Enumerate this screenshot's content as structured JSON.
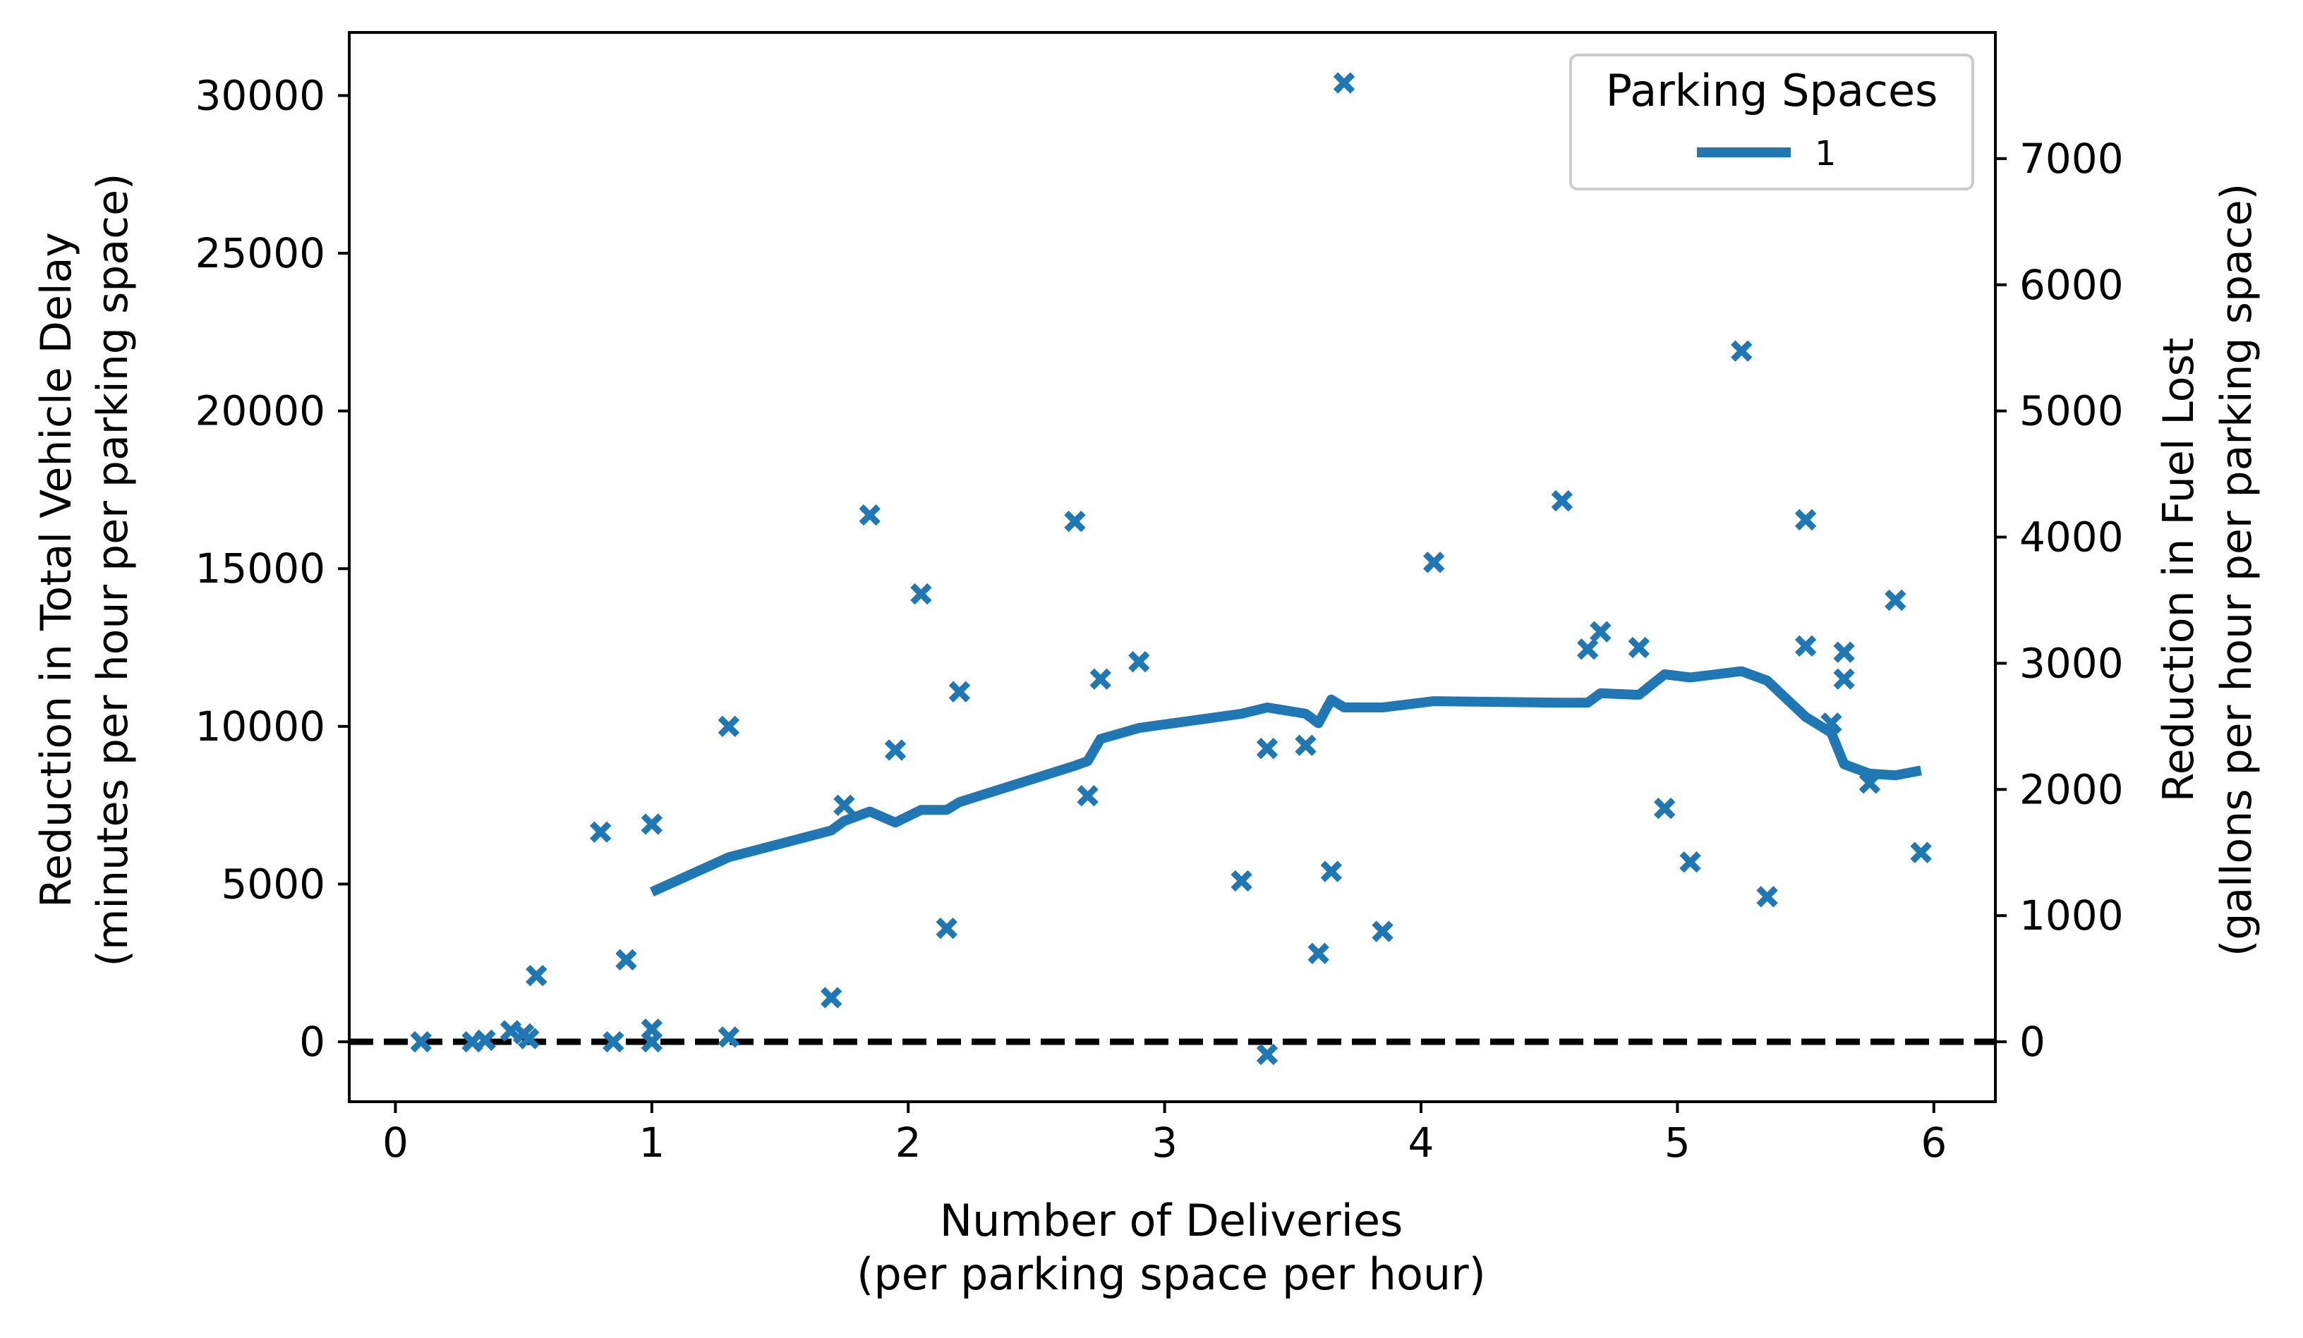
{
  "chart_data": {
    "type": "scatter",
    "xlabel": [
      "Number of Deliveries",
      "(per parking space per hour)"
    ],
    "ylabel_left": [
      "Reduction in Total Vehicle Delay",
      "(minutes per hour per parking space)"
    ],
    "ylabel_right": [
      "Reduction in Fuel Lost",
      "(gallons per hour per parking space)"
    ],
    "xlim": [
      -0.18,
      6.24
    ],
    "ylim_left": [
      -1900,
      32000
    ],
    "ylim_right": [
      -475,
      8000
    ],
    "xticks": [
      0,
      1,
      2,
      3,
      4,
      5,
      6
    ],
    "yticks_left": [
      0,
      5000,
      10000,
      15000,
      20000,
      25000,
      30000
    ],
    "yticks_right": [
      0,
      1000,
      2000,
      3000,
      4000,
      5000,
      6000,
      7000
    ],
    "reference_line_y": 0,
    "colors": {
      "series": "#1f77b4",
      "reference": "#000000",
      "axes": "#000000"
    },
    "legend": {
      "title": "Parking Spaces",
      "location": "top-right",
      "entries": [
        {
          "label": "1",
          "color": "#1f77b4"
        }
      ]
    },
    "scatter_points": [
      {
        "x": 0.1,
        "y": 0
      },
      {
        "x": 0.3,
        "y": 0
      },
      {
        "x": 0.35,
        "y": 50
      },
      {
        "x": 0.45,
        "y": 350
      },
      {
        "x": 0.5,
        "y": 250
      },
      {
        "x": 0.52,
        "y": 100
      },
      {
        "x": 0.55,
        "y": 2100
      },
      {
        "x": 0.8,
        "y": 6650
      },
      {
        "x": 0.85,
        "y": 0
      },
      {
        "x": 0.9,
        "y": 2600
      },
      {
        "x": 1.0,
        "y": 6900
      },
      {
        "x": 1.0,
        "y": 400
      },
      {
        "x": 1.0,
        "y": 0
      },
      {
        "x": 1.3,
        "y": 10000
      },
      {
        "x": 1.3,
        "y": 150
      },
      {
        "x": 1.7,
        "y": 1400
      },
      {
        "x": 1.75,
        "y": 7500
      },
      {
        "x": 1.85,
        "y": 16700
      },
      {
        "x": 1.95,
        "y": 9250
      },
      {
        "x": 2.05,
        "y": 14200
      },
      {
        "x": 2.15,
        "y": 3600
      },
      {
        "x": 2.2,
        "y": 11100
      },
      {
        "x": 2.65,
        "y": 16500
      },
      {
        "x": 2.7,
        "y": 7800
      },
      {
        "x": 2.75,
        "y": 11500
      },
      {
        "x": 2.9,
        "y": 12050
      },
      {
        "x": 3.3,
        "y": 5100
      },
      {
        "x": 3.4,
        "y": 9300
      },
      {
        "x": 3.4,
        "y": -400
      },
      {
        "x": 3.55,
        "y": 9400
      },
      {
        "x": 3.6,
        "y": 2800
      },
      {
        "x": 3.65,
        "y": 5400
      },
      {
        "x": 3.7,
        "y": 30400
      },
      {
        "x": 3.85,
        "y": 3500
      },
      {
        "x": 4.05,
        "y": 15200
      },
      {
        "x": 4.55,
        "y": 17150
      },
      {
        "x": 4.65,
        "y": 12450
      },
      {
        "x": 4.7,
        "y": 13000
      },
      {
        "x": 4.85,
        "y": 12500
      },
      {
        "x": 4.95,
        "y": 7400
      },
      {
        "x": 5.05,
        "y": 5700
      },
      {
        "x": 5.25,
        "y": 21900
      },
      {
        "x": 5.35,
        "y": 4600
      },
      {
        "x": 5.5,
        "y": 16550
      },
      {
        "x": 5.5,
        "y": 12550
      },
      {
        "x": 5.6,
        "y": 10100
      },
      {
        "x": 5.65,
        "y": 12350
      },
      {
        "x": 5.65,
        "y": 11500
      },
      {
        "x": 5.75,
        "y": 8200
      },
      {
        "x": 5.85,
        "y": 14000
      },
      {
        "x": 5.95,
        "y": 6000
      }
    ],
    "trend_line": [
      {
        "x": 1.0,
        "y": 4750
      },
      {
        "x": 1.3,
        "y": 5850
      },
      {
        "x": 1.7,
        "y": 6700
      },
      {
        "x": 1.75,
        "y": 7000
      },
      {
        "x": 1.85,
        "y": 7300
      },
      {
        "x": 1.95,
        "y": 6950
      },
      {
        "x": 2.05,
        "y": 7350
      },
      {
        "x": 2.15,
        "y": 7350
      },
      {
        "x": 2.2,
        "y": 7600
      },
      {
        "x": 2.65,
        "y": 8750
      },
      {
        "x": 2.7,
        "y": 8900
      },
      {
        "x": 2.75,
        "y": 9600
      },
      {
        "x": 2.9,
        "y": 9950
      },
      {
        "x": 3.3,
        "y": 10400
      },
      {
        "x": 3.4,
        "y": 10600
      },
      {
        "x": 3.55,
        "y": 10400
      },
      {
        "x": 3.6,
        "y": 10100
      },
      {
        "x": 3.65,
        "y": 10850
      },
      {
        "x": 3.7,
        "y": 10600
      },
      {
        "x": 3.85,
        "y": 10600
      },
      {
        "x": 4.05,
        "y": 10800
      },
      {
        "x": 4.55,
        "y": 10750
      },
      {
        "x": 4.65,
        "y": 10750
      },
      {
        "x": 4.7,
        "y": 11050
      },
      {
        "x": 4.85,
        "y": 11000
      },
      {
        "x": 4.95,
        "y": 11650
      },
      {
        "x": 5.05,
        "y": 11550
      },
      {
        "x": 5.25,
        "y": 11750
      },
      {
        "x": 5.35,
        "y": 11450
      },
      {
        "x": 5.5,
        "y": 10300
      },
      {
        "x": 5.6,
        "y": 9800
      },
      {
        "x": 5.65,
        "y": 8800
      },
      {
        "x": 5.75,
        "y": 8500
      },
      {
        "x": 5.85,
        "y": 8450
      },
      {
        "x": 5.95,
        "y": 8600
      }
    ]
  }
}
